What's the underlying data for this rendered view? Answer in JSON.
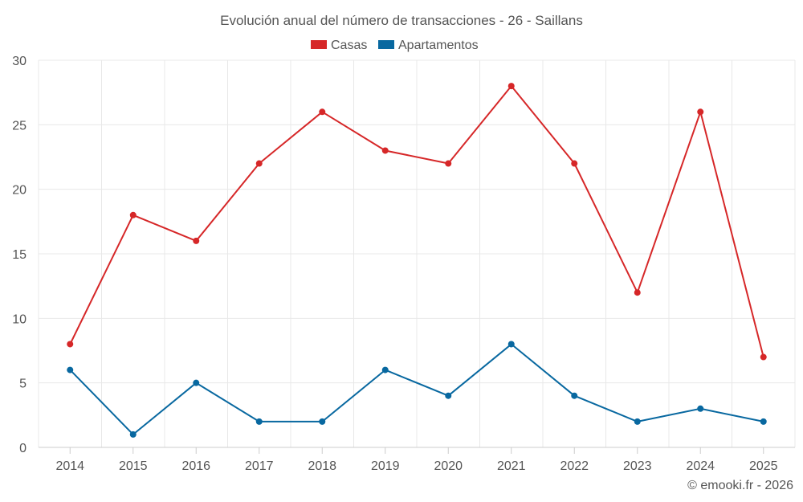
{
  "chart_data": {
    "type": "line",
    "title": "Evolución anual del número de transacciones - 26 - Saillans",
    "categories": [
      "2014",
      "2015",
      "2016",
      "2017",
      "2018",
      "2019",
      "2020",
      "2021",
      "2022",
      "2023",
      "2024",
      "2025"
    ],
    "ylim": [
      0,
      30
    ],
    "yticks": [
      0,
      5,
      10,
      15,
      20,
      25,
      30
    ],
    "grid": true,
    "legend_position": "top-center",
    "series": [
      {
        "name": "Casas",
        "color": "#d62728",
        "values": [
          8,
          18,
          16,
          22,
          26,
          23,
          22,
          28,
          22,
          12,
          26,
          7
        ]
      },
      {
        "name": "Apartamentos",
        "color": "#0868a0",
        "values": [
          6,
          1,
          5,
          2,
          2,
          6,
          4,
          8,
          4,
          2,
          3,
          2
        ]
      }
    ],
    "xlabel": "",
    "ylabel": ""
  },
  "credit": "© emooki.fr - 2026"
}
